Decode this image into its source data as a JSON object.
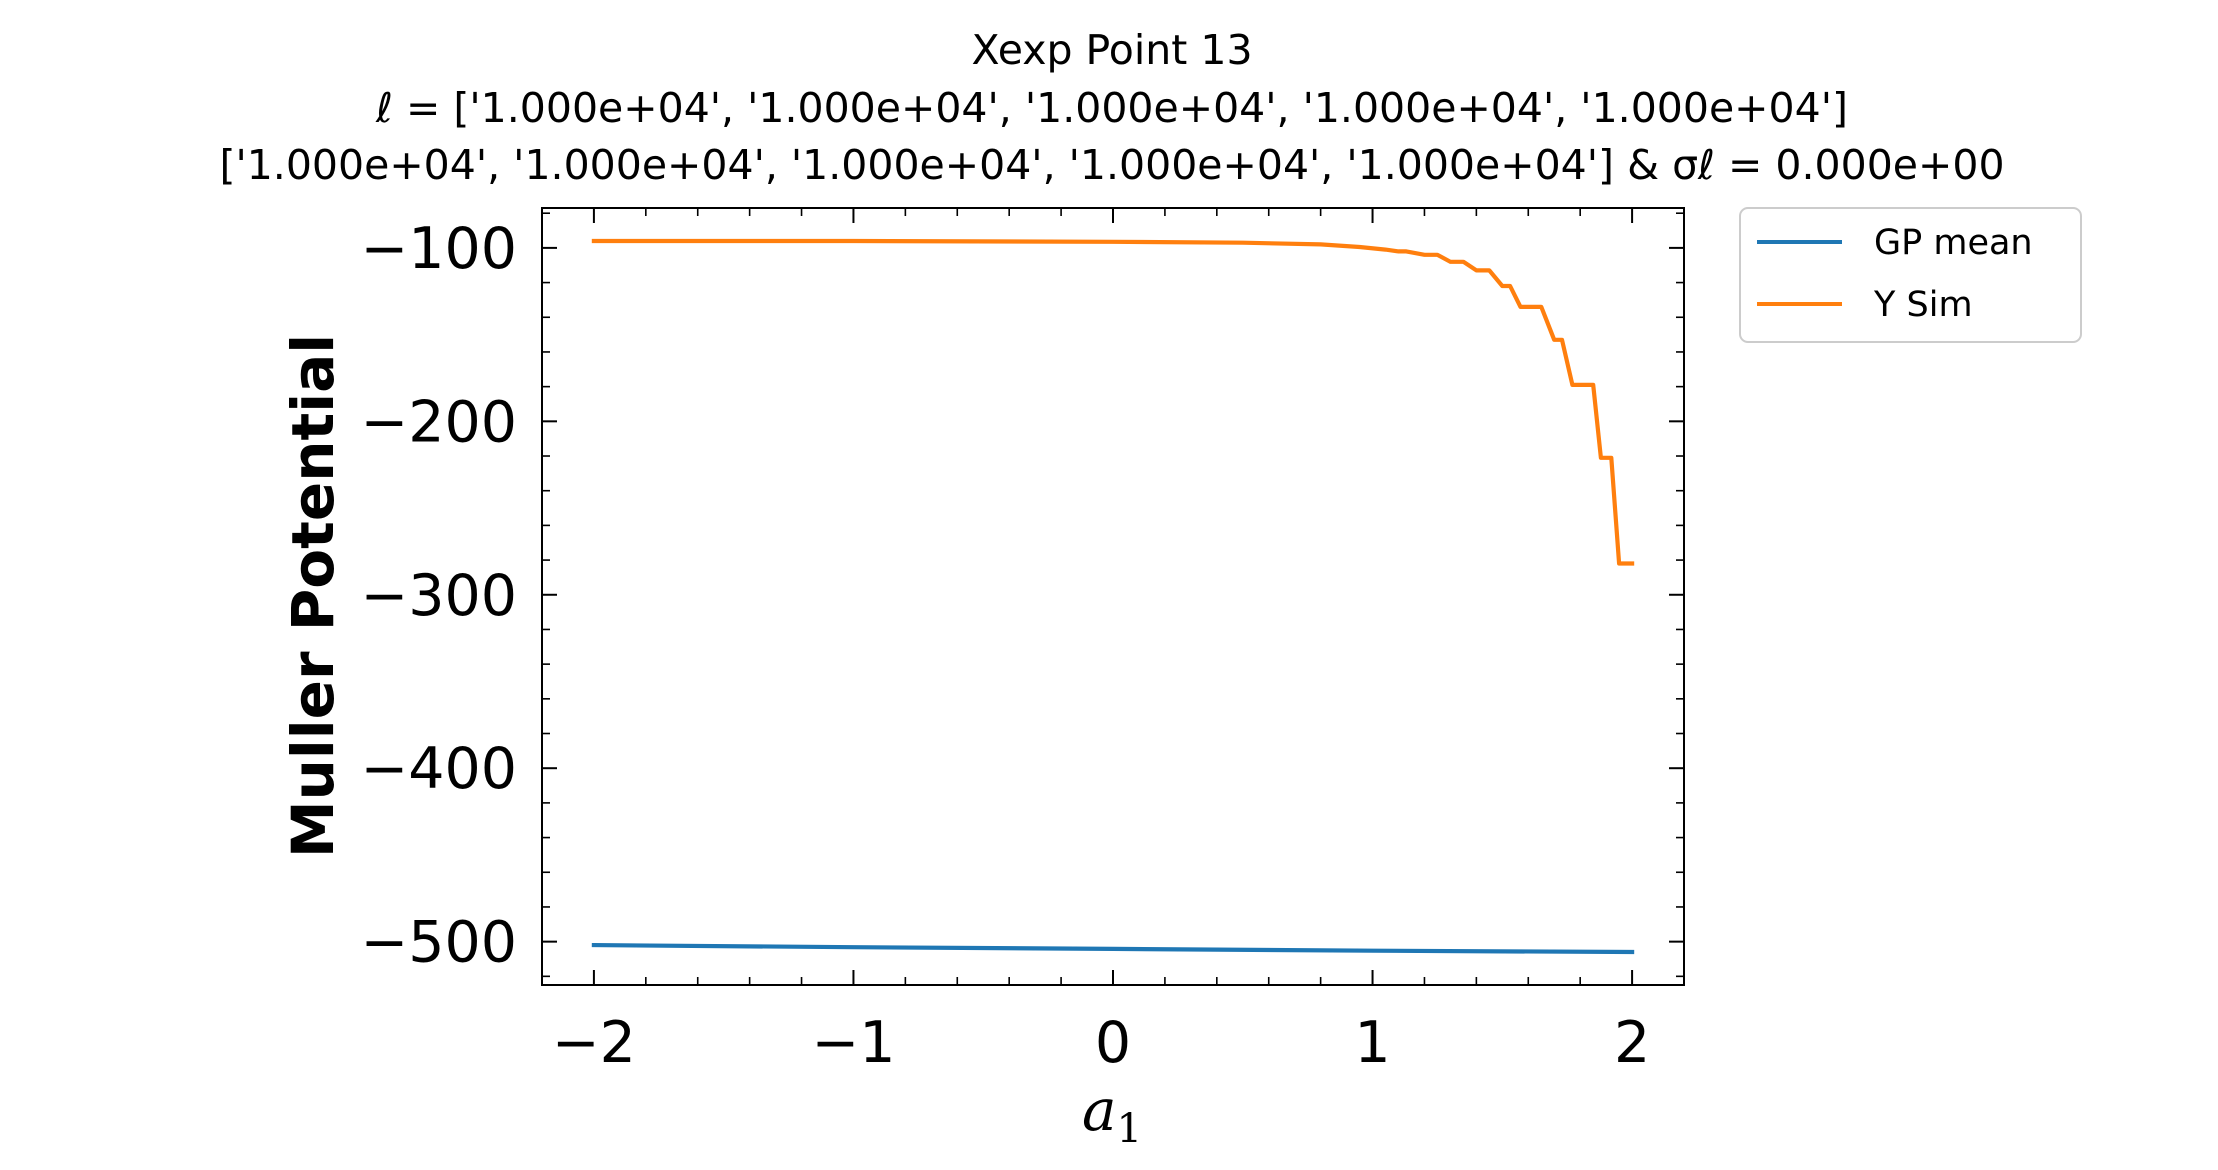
{
  "chart_data": {
    "type": "line",
    "title": [
      "Xexp Point 13",
      "ℓ = ['1.000e+04', '1.000e+04', '1.000e+04', '1.000e+04', '1.000e+04']",
      "['1.000e+04', '1.000e+04', '1.000e+04', '1.000e+04', '1.000e+04'] & σℓ = 0.000e+00"
    ],
    "xlabel": "a1",
    "ylabel": "Muller Potential",
    "xlim": [
      -2.2,
      2.2
    ],
    "ylim": [
      -525,
      -77
    ],
    "xticks": [
      -2,
      -1,
      0,
      1,
      2
    ],
    "xtick_labels": [
      "−2",
      "−1",
      "0",
      "1",
      "2"
    ],
    "yticks": [
      -100,
      -200,
      -300,
      -400,
      -500
    ],
    "ytick_labels": [
      "−100",
      "−200",
      "−300",
      "−400",
      "−500"
    ],
    "grid": false,
    "legend_position": "outside-top-right",
    "series": [
      {
        "name": "GP mean",
        "color": "#1f77b4",
        "x": [
          -2.0,
          -1.0,
          0.0,
          1.0,
          2.0
        ],
        "y": [
          -502,
          -503.2,
          -504.2,
          -505.2,
          -506
        ]
      },
      {
        "name": "Y Sim",
        "color": "#ff7f0e",
        "x": [
          -2.0,
          -1.0,
          0.0,
          0.5,
          0.8,
          0.95,
          1.05,
          1.1,
          1.13,
          1.2,
          1.25,
          1.3,
          1.35,
          1.4,
          1.45,
          1.5,
          1.53,
          1.57,
          1.6,
          1.65,
          1.7,
          1.73,
          1.77,
          1.8,
          1.85,
          1.88,
          1.92,
          1.95,
          2.0
        ],
        "y": [
          -96,
          -96,
          -96.5,
          -97,
          -98,
          -99.5,
          -101,
          -102,
          -102,
          -104,
          -104,
          -108,
          -108,
          -113,
          -113,
          -122,
          -122,
          -134,
          -134,
          -134,
          -153,
          -153,
          -179,
          -179,
          -179,
          -221,
          -221,
          -282,
          -282
        ]
      }
    ]
  }
}
